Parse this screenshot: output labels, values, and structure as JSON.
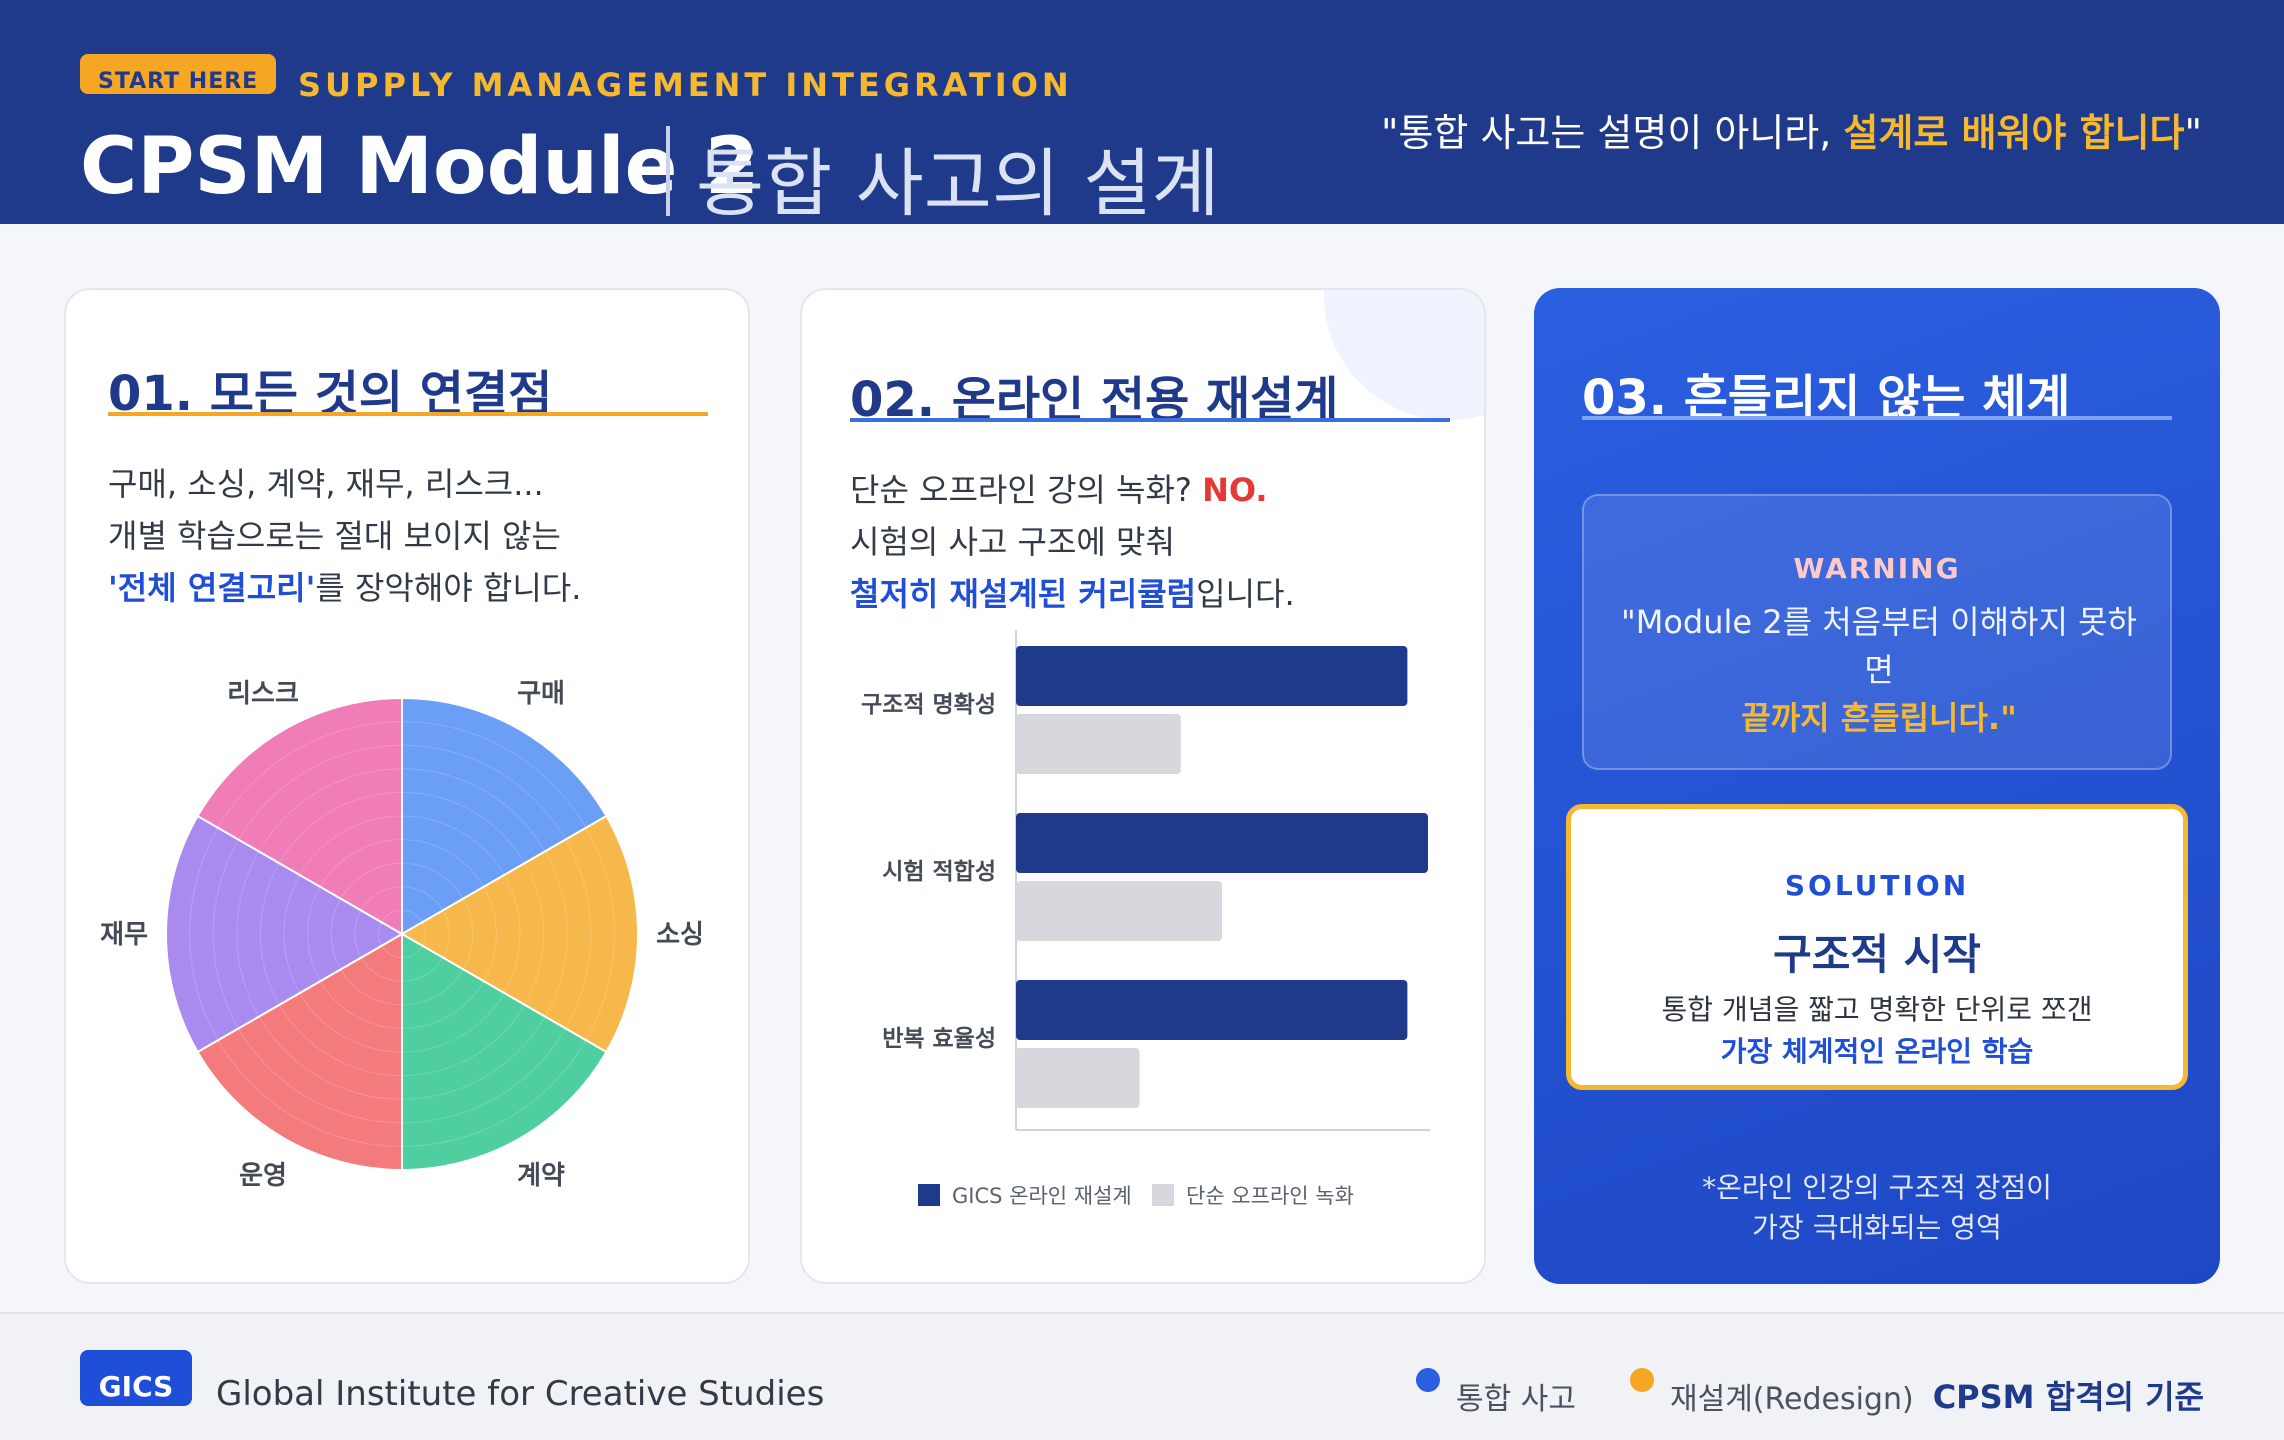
{
  "header": {
    "start_badge": "START HERE",
    "kicker": "SUPPLY MANAGEMENT INTEGRATION",
    "title": "CPSM Module 2",
    "subtitle": "통합 사고의 설계",
    "quote_prefix": "\"통합 사고는 설명이 아니라, ",
    "quote_highlight": "설계로 배워야 합니다",
    "quote_suffix": "\""
  },
  "card1": {
    "title": "01. 모든 것의 연결점",
    "line1": "구매, 소싱, 계약, 재무, 리스크...",
    "line2": "개별 학습으로는 절대 보이지 않는",
    "line3_highlight": "'전체 연결고리'",
    "line3_rest": "를 장악해야 합니다.",
    "accent_color": "#f5a623"
  },
  "card2": {
    "title": "02. 온라인 전용 재설계",
    "line1_prefix": "단순 오프라인 강의 녹화? ",
    "line1_highlight": "NO.",
    "line2": "시험의 사고 구조에 맞춰",
    "line3_highlight": "철저히 재설계된 커리큘럼",
    "line3_rest": "입니다.",
    "accent_color": "#3b6fe0"
  },
  "card3": {
    "title": "03. 흔들리지 않는 체계",
    "warning_label": "WARNING",
    "warning_text": "\"Module 2를 처음부터 이해하지 못하면",
    "warning_highlight": "끝까지 흔들립니다.\"",
    "solution_label": "SOLUTION",
    "solution_title": "구조적 시작",
    "solution_text": "통합 개념을 짧고 명확한 단위로 쪼갠",
    "solution_highlight": "가장 체계적인 온라인 학습",
    "note_line1": "*온라인 인강의 구조적 장점이",
    "note_line2": "가장 극대화되는 영역"
  },
  "chart_data": [
    {
      "type": "pie",
      "categories": [
        "구매",
        "소싱",
        "계약",
        "운영",
        "재무",
        "리스크"
      ],
      "values": [
        1,
        1,
        1,
        1,
        1,
        1
      ],
      "colors": [
        "#6b9ef5",
        "#f7b84b",
        "#4fcf9f",
        "#f47b7b",
        "#a98bf0",
        "#f07cb8"
      ]
    },
    {
      "type": "bar",
      "orientation": "horizontal",
      "categories": [
        "구조적 명확성",
        "시험 적합성",
        "반복 효율성"
      ],
      "series": [
        {
          "name": "GICS 온라인 재설계",
          "values": [
            95,
            100,
            95
          ],
          "color": "#1f3a8a"
        },
        {
          "name": "단순 오프라인 녹화",
          "values": [
            40,
            50,
            30
          ],
          "color": "#d6d8de"
        }
      ],
      "xlim": [
        0,
        100
      ],
      "legend": "bottom"
    }
  ],
  "footer": {
    "badge": "GICS",
    "institute": "Global Institute for Creative Studies",
    "legend1": "통합 사고",
    "legend1_color": "#2a5fe0",
    "legend2": "재설계(Redesign)",
    "legend2_color": "#f5a623",
    "right": "CPSM 합격의 기준"
  }
}
